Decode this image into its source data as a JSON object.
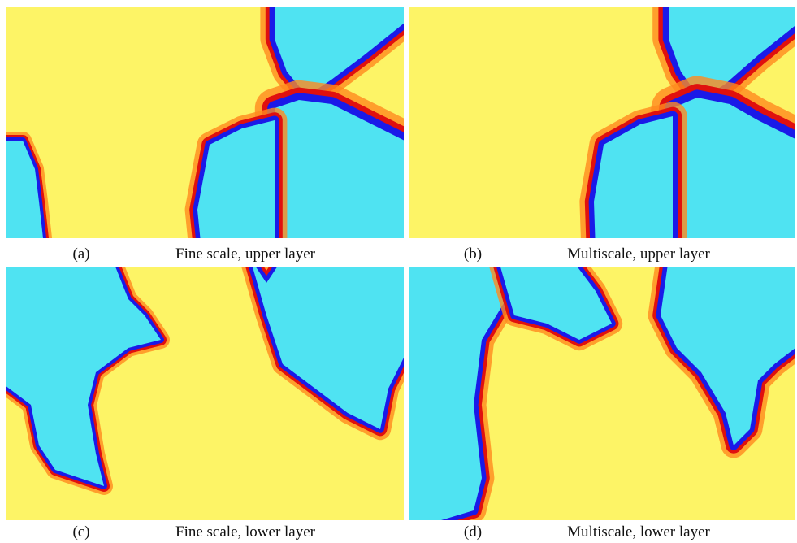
{
  "panels": [
    {
      "label": "(a)",
      "caption": "Fine scale, upper layer"
    },
    {
      "label": "(b)",
      "caption": "Multiscale, upper layer"
    },
    {
      "label": "(c)",
      "caption": "Fine scale, lower layer"
    },
    {
      "label": "(d)",
      "caption": "Multiscale, lower layer"
    }
  ]
}
